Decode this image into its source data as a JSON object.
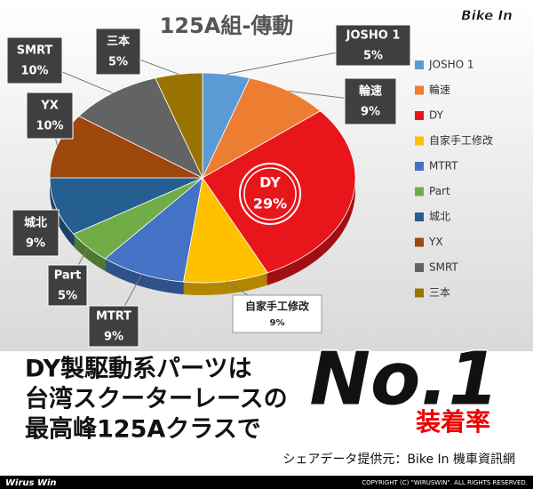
{
  "chart_data": {
    "type": "pie",
    "title": "125A組-傳動",
    "categories": [
      "JOSHO 1",
      "輪速",
      "DY",
      "自家手工修改",
      "MTRT",
      "Part",
      "城北",
      "YX",
      "SMRT",
      "三本"
    ],
    "values": [
      5,
      9,
      29,
      9,
      9,
      5,
      9,
      10,
      10,
      5
    ],
    "value_labels": [
      "5%",
      "9%",
      "29%",
      "9%",
      "9%",
      "5%",
      "9%",
      "10%",
      "10%",
      "5%"
    ],
    "colors": [
      "#5b9bd5",
      "#ed7d31",
      "#e8151b",
      "#ffc000",
      "#4472c4",
      "#70ad47",
      "#255e91",
      "#9e480e",
      "#636363",
      "#997300"
    ],
    "legend": "right"
  },
  "logo": "Bike In",
  "banner": {
    "lines": [
      "DY製駆動系パーツは",
      "台湾スクーターレースの",
      "最高峰125Aクラスで"
    ],
    "badge": "No.1",
    "badge_sub": "装着率",
    "source": "シェアデータ提供元：Bike In 機車資訊網"
  },
  "footer": {
    "brand": "Wirus Win",
    "copyright": "COPYRIGHT (C) \"WIRUSWIN\". ALL RIGHTS RESERVED."
  }
}
